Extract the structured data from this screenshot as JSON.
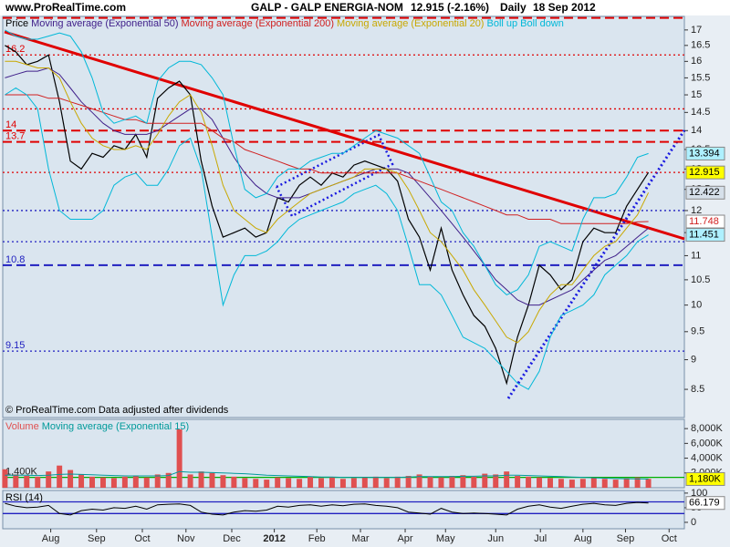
{
  "header": {
    "site": "www.ProRealTime.com",
    "title": "GALP - GALP ENERGIA-NOM",
    "quote": "12.915 (-2.16%)",
    "period": "Daily",
    "date": "18 Sep 2012"
  },
  "chart_data": [
    {
      "type": "line",
      "log_scale": true,
      "footnote": "© ProRealTime.com  Data adjusted after dividends",
      "xlim": [
        -0.2,
        62.3
      ],
      "ylim": [
        8.05,
        17.45
      ],
      "yticks": [
        8.5,
        9,
        9.5,
        10,
        10.5,
        11,
        11.5,
        12,
        12.5,
        13,
        13.5,
        14,
        14.5,
        15,
        15.5,
        16,
        16.5,
        17
      ],
      "xticks": [
        {
          "value": 4.2,
          "label": "Aug"
        },
        {
          "value": 8.4,
          "label": "Sep"
        },
        {
          "value": 12.6,
          "label": "Oct"
        },
        {
          "value": 16.6,
          "label": "Nov"
        },
        {
          "value": 20.8,
          "label": "Dec"
        },
        {
          "value": 24.7,
          "label": "2012",
          "bold": true
        },
        {
          "value": 28.6,
          "label": "Feb"
        },
        {
          "value": 32.6,
          "label": "Mar"
        },
        {
          "value": 36.7,
          "label": "Apr"
        },
        {
          "value": 40.4,
          "label": "May"
        },
        {
          "value": 45.0,
          "label": "Jun"
        },
        {
          "value": 49.1,
          "label": "Jul"
        },
        {
          "value": 53.0,
          "label": "Aug"
        },
        {
          "value": 56.9,
          "label": "Sep"
        },
        {
          "value": 60.9,
          "label": "Oct"
        }
      ],
      "levels": [
        {
          "value": 17.4,
          "color": "#e00000",
          "style": "dashed"
        },
        {
          "value": 16.2,
          "color": "#e00000",
          "style": "dotted",
          "labeled": true
        },
        {
          "value": 14.6,
          "color": "#e00000",
          "style": "dotted"
        },
        {
          "value": 14,
          "color": "#e00000",
          "style": "dashed",
          "labeled": true
        },
        {
          "value": 13.7,
          "color": "#e00000",
          "style": "dashed",
          "labeled": true
        },
        {
          "value": 12.915,
          "color": "#e00000",
          "style": "dotted"
        },
        {
          "value": 12,
          "color": "#2020c0",
          "style": "dotted"
        },
        {
          "value": 11.3,
          "color": "#2020c0",
          "style": "dotted"
        },
        {
          "value": 10.8,
          "color": "#2020c0",
          "style": "dashed",
          "labeled": true
        },
        {
          "value": 9.15,
          "color": "#2020c0",
          "style": "dotted",
          "labeled": true
        }
      ],
      "series": [
        {
          "name": "Price",
          "color": "#000000",
          "label_color": "#ffff00",
          "width": 1.2,
          "values": [
            16.5,
            16.3,
            15.9,
            16.0,
            16.2,
            14.8,
            13.2,
            13.0,
            13.4,
            13.3,
            13.6,
            13.5,
            13.9,
            13.3,
            14.9,
            15.2,
            15.4,
            15.0,
            13.2,
            12.1,
            11.4,
            11.5,
            11.6,
            11.4,
            11.5,
            12.3,
            12.2,
            12.6,
            12.8,
            12.6,
            12.9,
            12.8,
            13.1,
            13.2,
            13.1,
            13.0,
            12.7,
            11.8,
            11.4,
            10.7,
            11.6,
            10.7,
            10.2,
            9.8,
            9.6,
            9.2,
            8.6,
            9.4,
            10.0,
            10.8,
            10.6,
            10.3,
            10.5,
            11.3,
            11.6,
            11.5,
            11.5,
            12.1,
            12.5,
            12.915
          ]
        },
        {
          "name": "Moving average (Exponential 50)",
          "color": "#40208a",
          "width": 1,
          "values": [
            15.5,
            15.6,
            15.7,
            15.7,
            15.8,
            15.6,
            15.2,
            14.8,
            14.5,
            14.2,
            14.0,
            13.9,
            13.9,
            13.9,
            14.0,
            14.2,
            14.4,
            14.6,
            14.6,
            14.3,
            13.8,
            13.3,
            12.9,
            12.6,
            12.4,
            12.3,
            12.3,
            12.3,
            12.4,
            12.5,
            12.6,
            12.7,
            12.8,
            12.9,
            13.0,
            13.0,
            13.0,
            12.9,
            12.6,
            12.3,
            12.0,
            11.7,
            11.4,
            11.1,
            10.8,
            10.5,
            10.3,
            10.1,
            10.0,
            10.0,
            10.1,
            10.2,
            10.3,
            10.5,
            10.7,
            10.9,
            11.0,
            11.2,
            11.4,
            11.6
          ]
        },
        {
          "name": "Moving average (Exponential 200)",
          "color": "#d02020",
          "label_color": "#ffffff",
          "width": 1,
          "values": [
            15.0,
            15.0,
            15.0,
            15.0,
            14.9,
            14.9,
            14.8,
            14.7,
            14.6,
            14.5,
            14.4,
            14.3,
            14.3,
            14.2,
            14.2,
            14.2,
            14.2,
            14.2,
            14.2,
            14.0,
            13.8,
            13.7,
            13.5,
            13.4,
            13.3,
            13.2,
            13.1,
            13.0,
            13.0,
            12.9,
            12.9,
            12.9,
            12.9,
            12.9,
            12.9,
            12.9,
            12.9,
            12.8,
            12.7,
            12.6,
            12.5,
            12.4,
            12.3,
            12.2,
            12.1,
            12.0,
            11.9,
            11.9,
            11.8,
            11.8,
            11.8,
            11.7,
            11.7,
            11.7,
            11.7,
            11.7,
            11.7,
            11.7,
            11.74,
            11.748
          ]
        },
        {
          "name": "Moving average (Exponential 20)",
          "color": "#c8a800",
          "label_color": "#d6e0ea",
          "width": 1,
          "values": [
            16.0,
            16.0,
            15.9,
            15.8,
            15.8,
            15.5,
            14.8,
            14.2,
            13.8,
            13.6,
            13.5,
            13.5,
            13.6,
            13.5,
            13.9,
            14.4,
            14.8,
            15.0,
            14.5,
            13.6,
            12.6,
            12.0,
            11.8,
            11.6,
            11.5,
            11.8,
            12.0,
            12.2,
            12.4,
            12.5,
            12.6,
            12.7,
            12.8,
            13.0,
            13.0,
            13.0,
            12.9,
            12.5,
            12.0,
            11.5,
            11.3,
            11.0,
            10.7,
            10.3,
            10.0,
            9.7,
            9.4,
            9.3,
            9.5,
            9.9,
            10.2,
            10.4,
            10.4,
            10.7,
            11.0,
            11.2,
            11.3,
            11.6,
            11.9,
            12.422
          ]
        },
        {
          "name": "Boll up Boll down",
          "color": "#00b8d8",
          "label_color": "#aef0ff",
          "width": 1,
          "values": [
            17.0,
            16.8,
            16.7,
            16.7,
            16.8,
            16.9,
            16.8,
            16.3,
            15.5,
            14.5,
            14.2,
            14.3,
            14.4,
            14.2,
            15.4,
            15.8,
            16.0,
            16.0,
            15.9,
            15.5,
            15.0,
            13.6,
            12.5,
            12.3,
            12.4,
            12.8,
            13.0,
            13.0,
            13.2,
            13.3,
            13.4,
            13.4,
            13.6,
            13.8,
            14.0,
            13.9,
            13.8,
            13.6,
            13.4,
            12.8,
            12.2,
            12.0,
            11.5,
            11.2,
            10.8,
            10.4,
            10.2,
            10.3,
            10.6,
            11.2,
            11.3,
            11.2,
            11.1,
            11.8,
            12.3,
            12.3,
            12.4,
            12.8,
            13.3,
            13.394
          ],
          "values_lower": [
            15.0,
            15.2,
            15.0,
            14.6,
            13.0,
            12.0,
            11.8,
            11.8,
            11.8,
            12.0,
            12.6,
            12.8,
            12.9,
            12.6,
            12.6,
            13.0,
            13.6,
            13.8,
            13.0,
            11.4,
            10.0,
            10.6,
            11.0,
            11.0,
            11.1,
            11.3,
            11.6,
            11.8,
            11.9,
            12.0,
            12.1,
            12.2,
            12.4,
            12.5,
            12.6,
            12.4,
            12.0,
            11.2,
            10.4,
            10.4,
            10.2,
            9.8,
            9.4,
            9.3,
            9.2,
            9.0,
            8.8,
            8.6,
            8.5,
            8.8,
            9.4,
            9.8,
            9.9,
            10.0,
            10.2,
            10.6,
            10.8,
            11.0,
            11.3,
            11.451
          ]
        }
      ]
    },
    {
      "type": "bar",
      "ylim": [
        0,
        9250
      ],
      "yticks": [
        {
          "value": 2000,
          "label": "2,000K"
        },
        {
          "value": 4000,
          "label": "4,000K"
        },
        {
          "value": 6000,
          "label": "6,000K"
        },
        {
          "value": 8000,
          "label": "8,000K"
        }
      ],
      "levels": [
        {
          "value": 1400,
          "label": "1,400K",
          "color": "#00b000"
        }
      ],
      "series": [
        {
          "name": "Volume",
          "color": "#e05050",
          "values": [
            2500,
            1800,
            1600,
            1500,
            2200,
            3000,
            2400,
            1800,
            1500,
            1400,
            1300,
            1500,
            1600,
            1400,
            1800,
            2000,
            7900,
            1800,
            2200,
            2000,
            1700,
            1500,
            1300,
            1200,
            1100,
            1400,
            1300,
            1200,
            1500,
            1300,
            1400,
            1200,
            1300,
            1400,
            1500,
            1300,
            1500,
            1600,
            1800,
            1500,
            1400,
            1600,
            1700,
            1500,
            1900,
            1800,
            2200,
            1600,
            1500,
            1400,
            1300,
            1200,
            1100,
            1200,
            1300,
            1200,
            1100,
            1300,
            1400,
            1200
          ]
        },
        {
          "name": "Moving average (Exponential 15)",
          "color": "#009a9a",
          "line": true,
          "label_color": "#ffff00",
          "values": [
            1700,
            1700,
            1700,
            1650,
            1700,
            1800,
            1850,
            1800,
            1750,
            1700,
            1650,
            1600,
            1600,
            1600,
            1600,
            1650,
            2200,
            2100,
            2100,
            2050,
            2000,
            1950,
            1900,
            1800,
            1700,
            1650,
            1600,
            1550,
            1500,
            1450,
            1450,
            1400,
            1400,
            1400,
            1400,
            1400,
            1400,
            1450,
            1500,
            1500,
            1500,
            1500,
            1550,
            1550,
            1600,
            1600,
            1700,
            1700,
            1650,
            1600,
            1550,
            1500,
            1450,
            1400,
            1350,
            1300,
            1250,
            1220,
            1200,
            1180
          ],
          "value_labels": [
            null,
            null,
            null,
            null,
            null,
            null,
            null,
            null,
            null,
            null,
            null,
            null,
            null,
            null,
            null,
            null,
            null,
            null,
            null,
            null,
            null,
            null,
            null,
            null,
            null,
            null,
            null,
            null,
            null,
            null,
            null,
            null,
            null,
            null,
            null,
            null,
            null,
            null,
            null,
            null,
            null,
            null,
            null,
            null,
            null,
            null,
            null,
            null,
            null,
            null,
            null,
            null,
            null,
            null,
            null,
            null,
            null,
            null,
            null,
            "1,180K"
          ]
        }
      ]
    },
    {
      "type": "line",
      "ylim": [
        -22,
        109
      ],
      "yticks": [
        0,
        50,
        100
      ],
      "levels": [
        {
          "value": 70,
          "color": "#2020c0"
        },
        {
          "value": 30,
          "color": "#2020c0"
        }
      ],
      "series": [
        {
          "name": "RSI (14)",
          "color": "#000000",
          "label_color": "#ffffff",
          "width": 1,
          "values": [
            65,
            55,
            50,
            52,
            58,
            30,
            25,
            40,
            45,
            42,
            50,
            48,
            55,
            45,
            60,
            62,
            63,
            58,
            35,
            28,
            25,
            35,
            40,
            38,
            42,
            55,
            52,
            58,
            60,
            55,
            60,
            57,
            62,
            63,
            58,
            55,
            50,
            35,
            32,
            28,
            48,
            35,
            30,
            32,
            30,
            28,
            25,
            45,
            55,
            60,
            52,
            48,
            55,
            62,
            65,
            60,
            58,
            65,
            68,
            66.179
          ]
        }
      ]
    }
  ]
}
